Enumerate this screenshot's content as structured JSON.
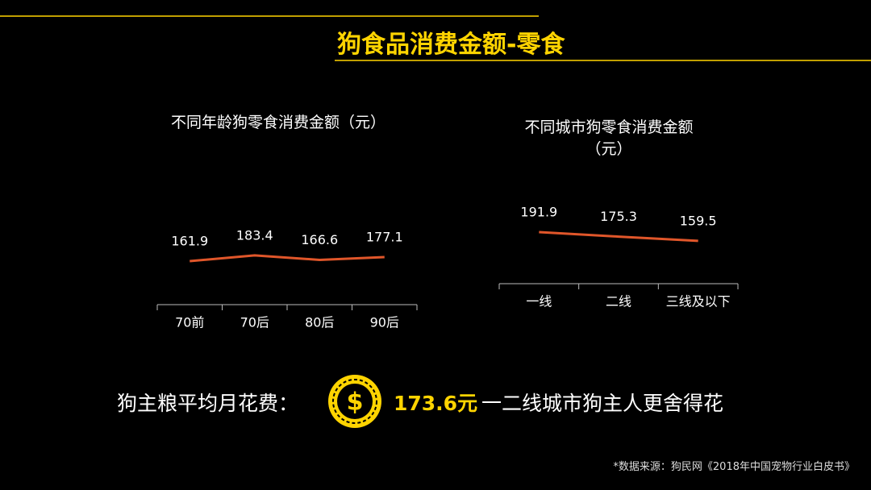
{
  "header": {
    "title": "狗食品消费金额-零食"
  },
  "chart_data": [
    {
      "type": "line",
      "title": "不同年龄狗零食消费金额（元）",
      "categories": [
        "70前",
        "70后",
        "80后",
        "90后"
      ],
      "values": [
        161.9,
        183.4,
        166.6,
        177.1
      ],
      "color": "#e0562a",
      "ylim": [
        0,
        600
      ]
    },
    {
      "type": "line",
      "title": "不同城市狗零食消费金额（元）",
      "categories": [
        "一线",
        "二线",
        "三线及以下"
      ],
      "values": [
        191.9,
        175.3,
        159.5
      ],
      "color": "#e0562a",
      "ylim": [
        0,
        600
      ]
    }
  ],
  "summary": {
    "label": "狗主粮平均月花费：",
    "value": "173.6元",
    "note": "一二线城市狗主人更舍得花"
  },
  "source": "*数据来源：狗民网《2018年中国宠物行业白皮书》"
}
